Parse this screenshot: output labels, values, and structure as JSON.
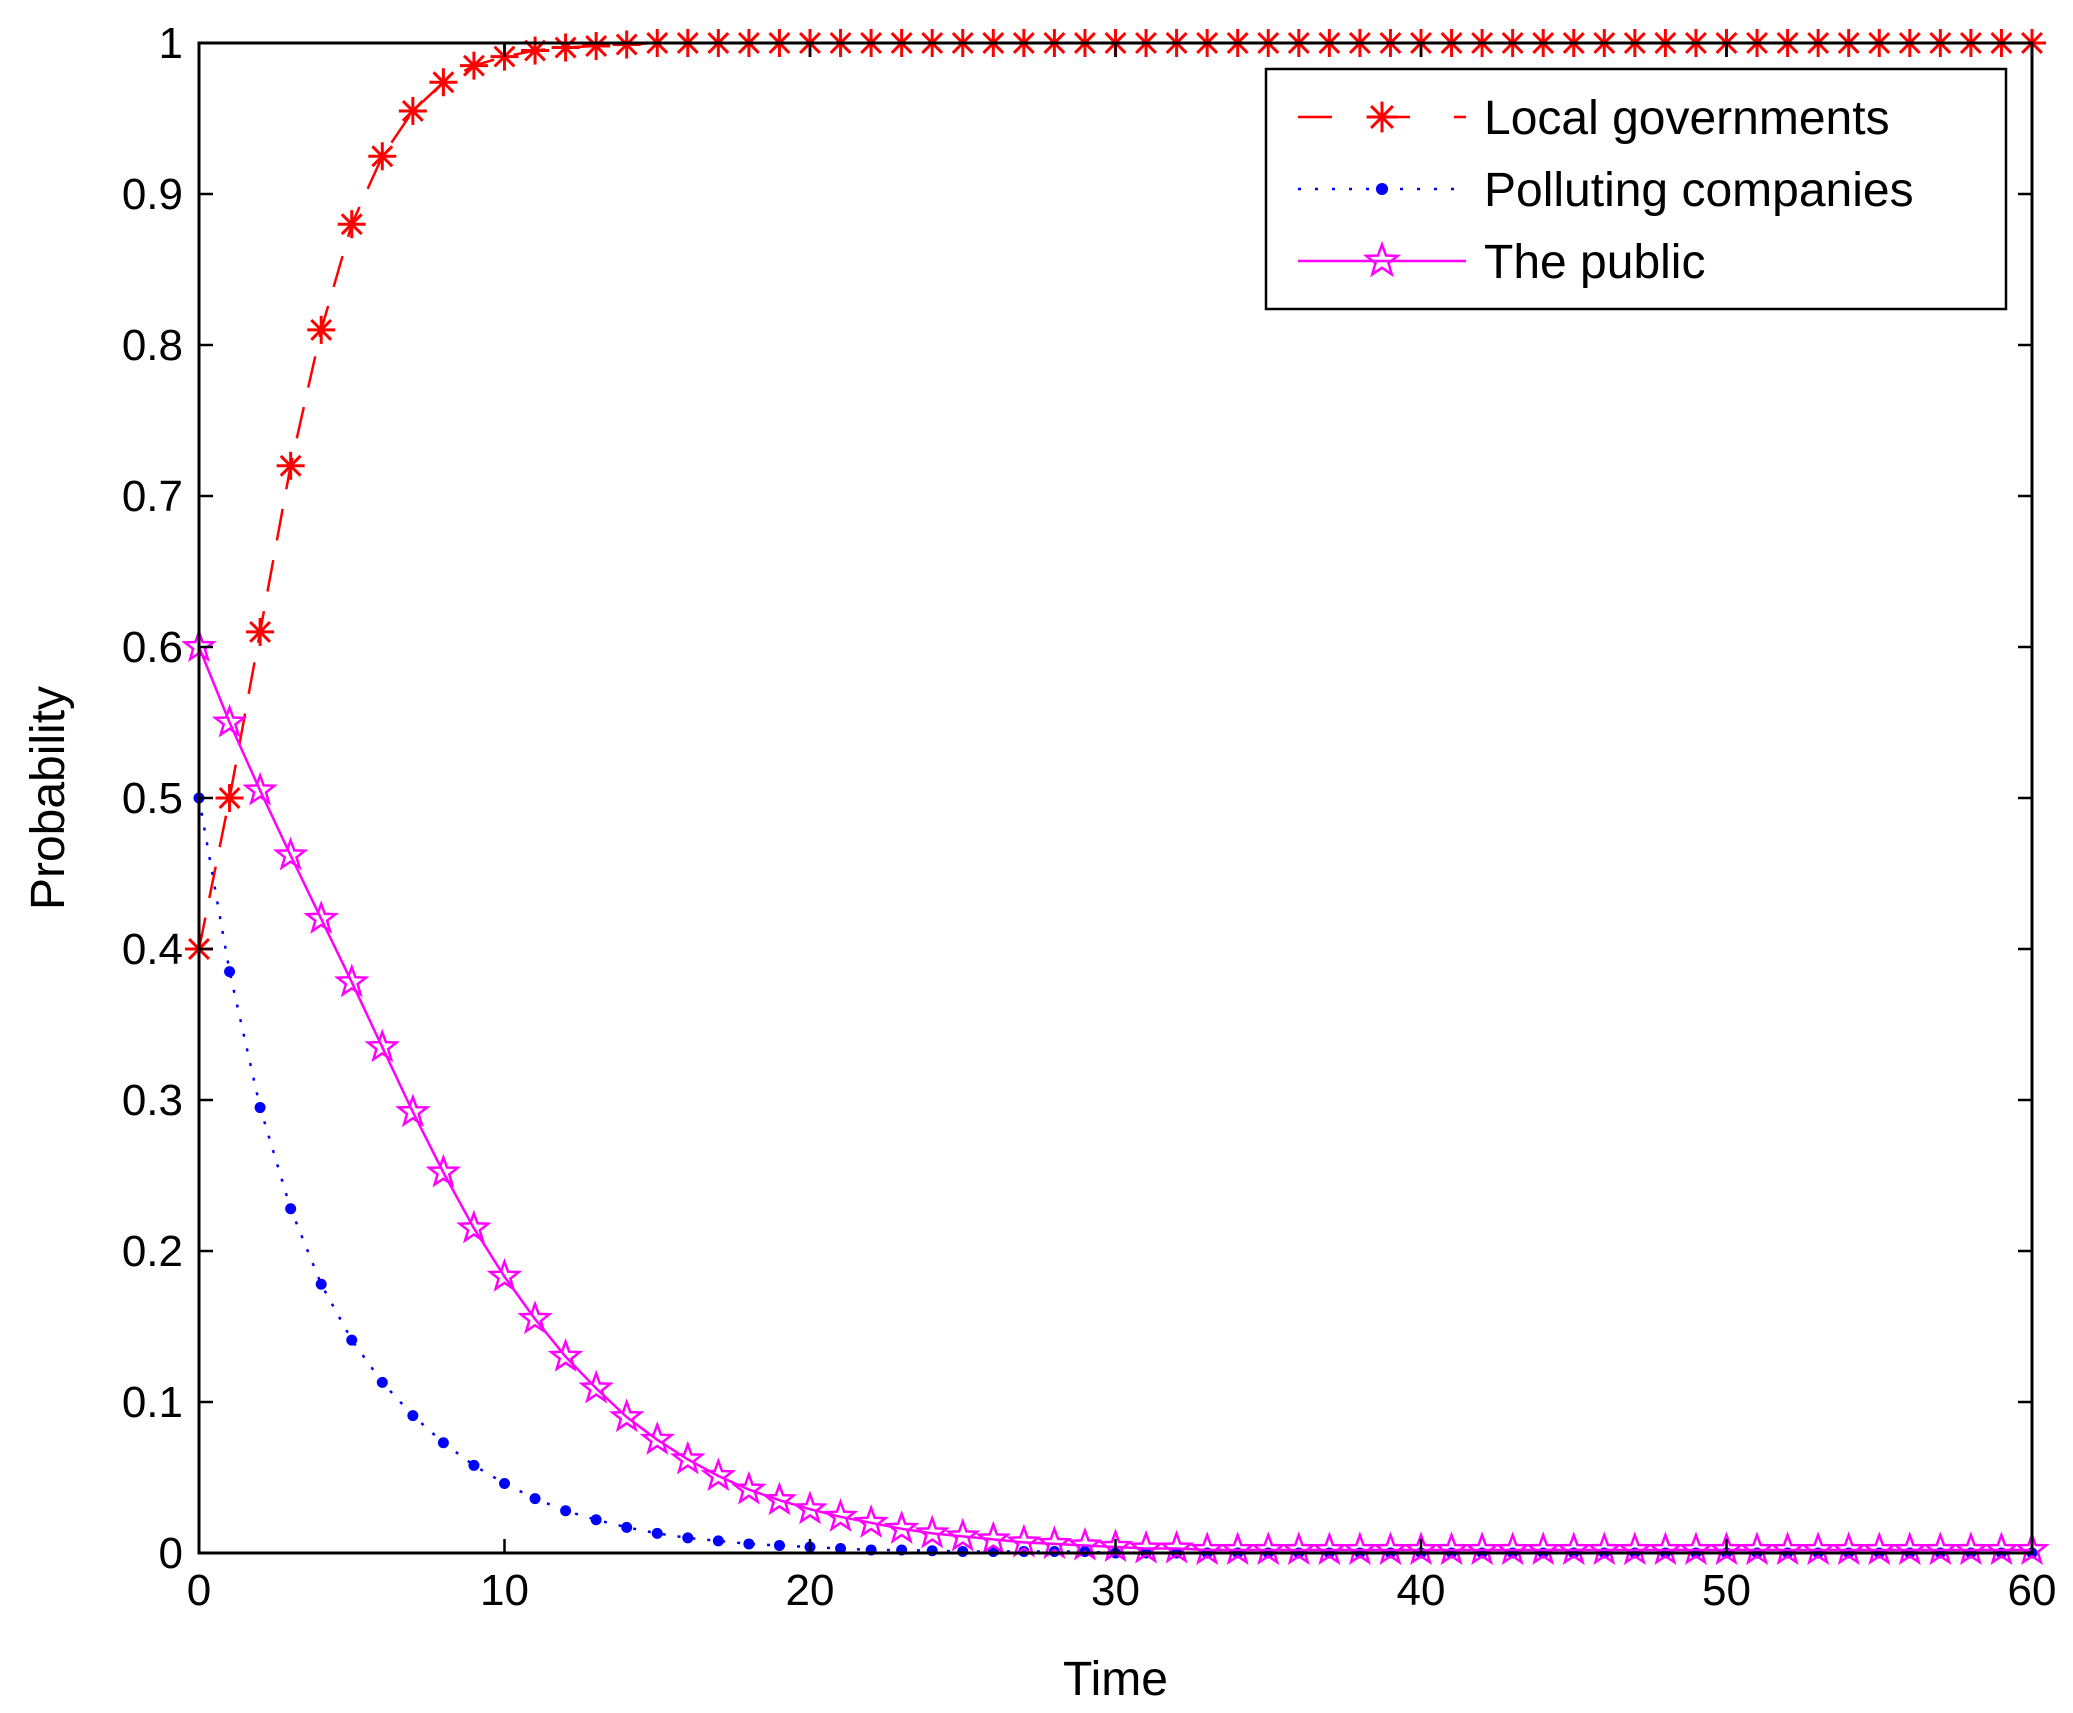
{
  "chart_data": {
    "type": "line",
    "title": "",
    "xlabel": "Time",
    "ylabel": "Probability",
    "xlim": [
      0,
      60
    ],
    "ylim": [
      0,
      1
    ],
    "xticks": [
      "0",
      "10",
      "20",
      "30",
      "40",
      "50",
      "60"
    ],
    "yticks": [
      "0",
      "0.1",
      "0.2",
      "0.3",
      "0.4",
      "0.5",
      "0.6",
      "0.7",
      "0.8",
      "0.9",
      "1"
    ],
    "grid": false,
    "legend_position": "top-right",
    "series": [
      {
        "name": "Local governments",
        "color": "#ff0000",
        "line_style": "dashed",
        "marker": "asterisk",
        "x": [
          0,
          1,
          2,
          3,
          4,
          5,
          6,
          7,
          8,
          9,
          10,
          11,
          12,
          13,
          14,
          15,
          16,
          17,
          18,
          19,
          20,
          21,
          22,
          23,
          24,
          25,
          26,
          27,
          28,
          29,
          30,
          31,
          32,
          33,
          34,
          35,
          36,
          37,
          38,
          39,
          40,
          41,
          42,
          43,
          44,
          45,
          46,
          47,
          48,
          49,
          50,
          51,
          52,
          53,
          54,
          55,
          56,
          57,
          58,
          59,
          60
        ],
        "y": [
          0.4,
          0.5,
          0.61,
          0.72,
          0.81,
          0.88,
          0.925,
          0.955,
          0.974,
          0.985,
          0.991,
          0.995,
          0.997,
          0.998,
          0.999,
          1,
          1,
          1,
          1,
          1,
          1,
          1,
          1,
          1,
          1,
          1,
          1,
          1,
          1,
          1,
          1,
          1,
          1,
          1,
          1,
          1,
          1,
          1,
          1,
          1,
          1,
          1,
          1,
          1,
          1,
          1,
          1,
          1,
          1,
          1,
          1,
          1,
          1,
          1,
          1,
          1,
          1,
          1,
          1,
          1,
          1
        ]
      },
      {
        "name": "Polluting companies",
        "color": "#0000ff",
        "line_style": "dotted",
        "marker": "dot",
        "x": [
          0,
          1,
          2,
          3,
          4,
          5,
          6,
          7,
          8,
          9,
          10,
          11,
          12,
          13,
          14,
          15,
          16,
          17,
          18,
          19,
          20,
          21,
          22,
          23,
          24,
          25,
          26,
          27,
          28,
          29,
          30,
          31,
          32,
          33,
          34,
          35,
          36,
          37,
          38,
          39,
          40,
          41,
          42,
          43,
          44,
          45,
          46,
          47,
          48,
          49,
          50,
          51,
          52,
          53,
          54,
          55,
          56,
          57,
          58,
          59,
          60
        ],
        "y": [
          0.5,
          0.385,
          0.295,
          0.228,
          0.178,
          0.141,
          0.113,
          0.091,
          0.073,
          0.058,
          0.046,
          0.036,
          0.028,
          0.022,
          0.017,
          0.013,
          0.01,
          0.008,
          0.006,
          0.005,
          0.004,
          0.003,
          0.002,
          0.002,
          0.0015,
          0.001,
          0.001,
          0.001,
          0.001,
          0.001,
          0,
          0,
          0,
          0,
          0,
          0,
          0,
          0,
          0,
          0,
          0,
          0,
          0,
          0,
          0,
          0,
          0,
          0,
          0,
          0,
          0,
          0,
          0,
          0,
          0,
          0,
          0,
          0,
          0,
          0,
          0
        ]
      },
      {
        "name": "The public",
        "color": "#ff00ff",
        "line_style": "solid",
        "marker": "star",
        "x": [
          0,
          1,
          2,
          3,
          4,
          5,
          6,
          7,
          8,
          9,
          10,
          11,
          12,
          13,
          14,
          15,
          16,
          17,
          18,
          19,
          20,
          21,
          22,
          23,
          24,
          25,
          26,
          27,
          28,
          29,
          30,
          31,
          32,
          33,
          34,
          35,
          36,
          37,
          38,
          39,
          40,
          41,
          42,
          43,
          44,
          45,
          46,
          47,
          48,
          49,
          50,
          51,
          52,
          53,
          54,
          55,
          56,
          57,
          58,
          59,
          60
        ],
        "y": [
          0.6,
          0.55,
          0.505,
          0.462,
          0.42,
          0.378,
          0.335,
          0.292,
          0.252,
          0.215,
          0.183,
          0.155,
          0.13,
          0.109,
          0.09,
          0.075,
          0.062,
          0.051,
          0.042,
          0.035,
          0.029,
          0.024,
          0.02,
          0.016,
          0.013,
          0.011,
          0.009,
          0.007,
          0.006,
          0.005,
          0.004,
          0.003,
          0.003,
          0.002,
          0.002,
          0.002,
          0.002,
          0.002,
          0.002,
          0.002,
          0.002,
          0.002,
          0.002,
          0.002,
          0.002,
          0.002,
          0.002,
          0.002,
          0.002,
          0.002,
          0.002,
          0.002,
          0.002,
          0.002,
          0.002,
          0.002,
          0.002,
          0.002,
          0.002,
          0.002,
          0.002
        ]
      }
    ]
  }
}
